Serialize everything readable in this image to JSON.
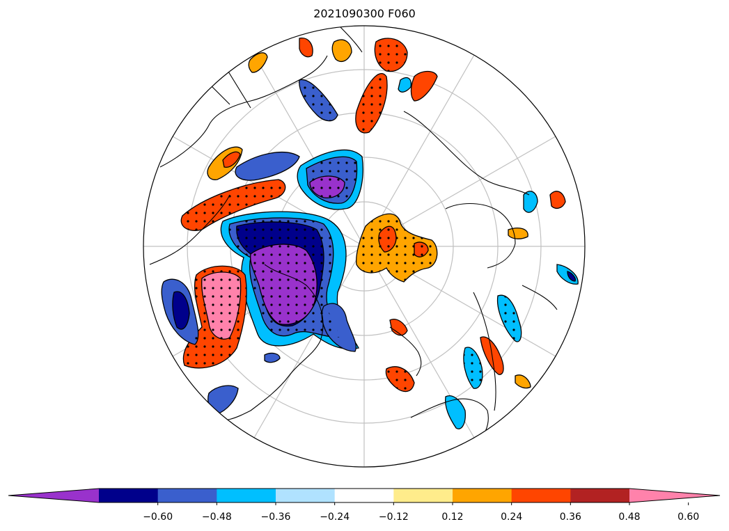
{
  "title": "2021090300 F060",
  "colors": {
    "levels": [
      "#9932cc",
      "#00008b",
      "#3a5fcd",
      "#00bfff",
      "#b0e2ff",
      "#ffffff",
      "#ffec8b",
      "#ffa500",
      "#ff4500",
      "#b22222",
      "#ff82ab"
    ],
    "grid": "#c0c0c0",
    "coast": "#000000"
  },
  "colorbar": {
    "ticks": [
      "−0.60",
      "−0.48",
      "−0.36",
      "−0.24",
      "−0.12",
      "0.12",
      "0.24",
      "0.36",
      "0.48",
      "0.60"
    ],
    "extend": "both"
  }
}
